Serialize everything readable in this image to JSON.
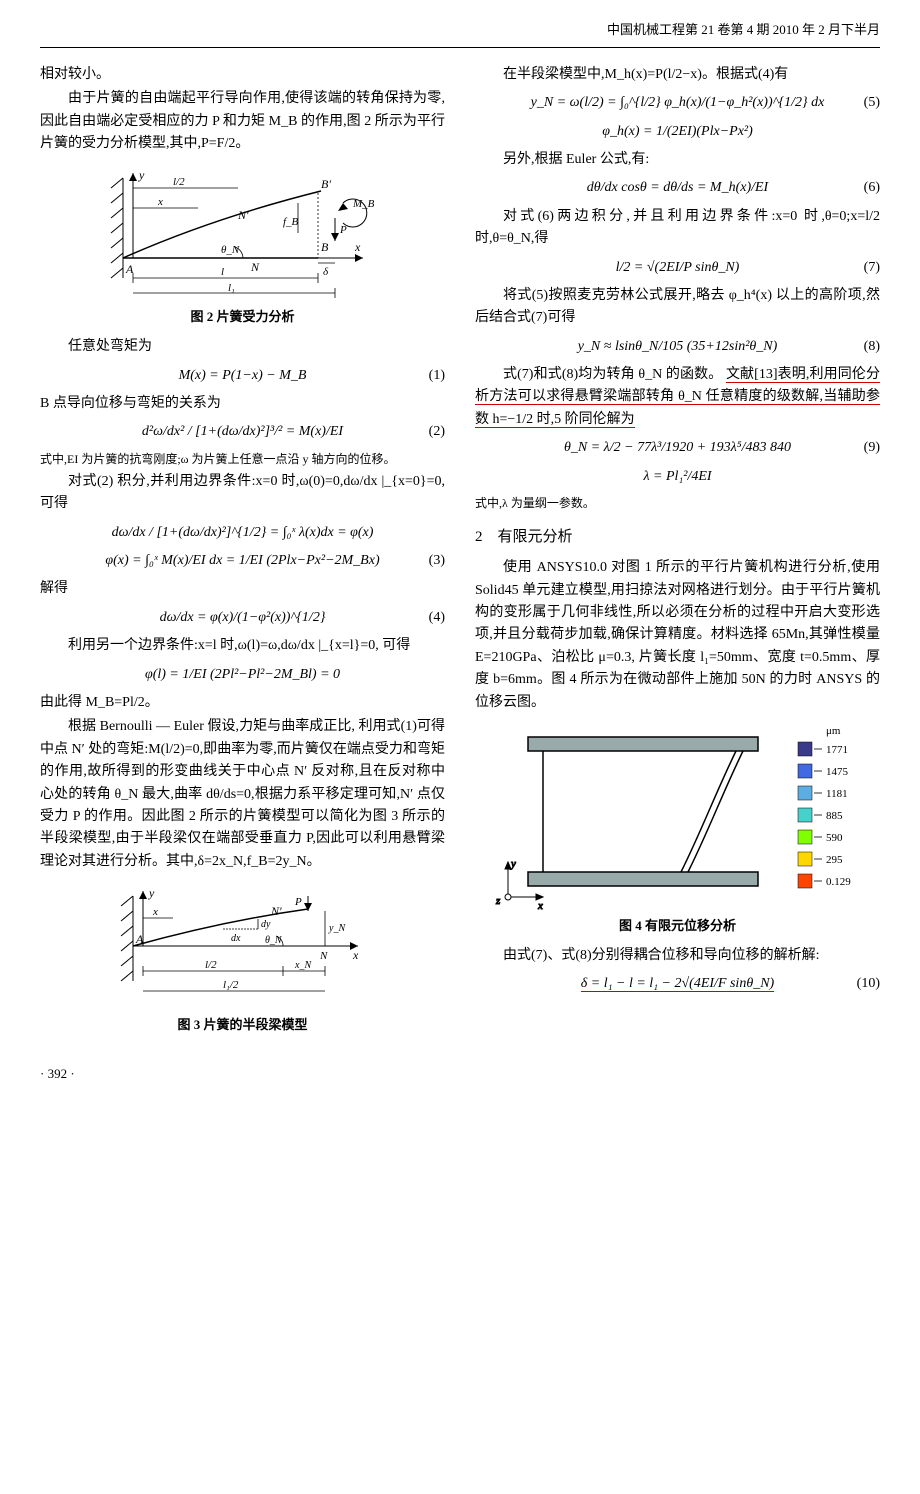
{
  "header": {
    "journal": "中国机械工程第 21 卷第 4 期 2010 年 2 月下半月"
  },
  "col1": {
    "p1": "相对较小。",
    "p2": "由于片簧的自由端起平行导向作用,使得该端的转角保持为零,因此自由端必定受相应的力 P 和力矩 M_B 的作用,图 2 所示为平行片簧的受力分析模型,其中,P=F/2。",
    "fig2_caption": "图 2  片簧受力分析",
    "p3": "任意处弯矩为",
    "eq1": "M(x) = P(1−x) − M_B",
    "eq1_num": "(1)",
    "p4": "B 点导向位移与弯矩的关系为",
    "eq2": "d²ω/dx² / [1+(dω/dx)²]³/² = M(x)/EI",
    "eq2_num": "(2)",
    "p5": "式中,EI 为片簧的抗弯刚度;ω 为片簧上任意一点沿 y 轴方向的位移。",
    "p6": "对式(2) 积分,并利用边界条件:x=0 时,ω(0)=0,dω/dx |_{x=0}=0,可得",
    "eq3a": "dω/dx / [1+(dω/dx)²]^{1/2} = ∫₀ˣ λ(x)dx = φ(x)",
    "eq3b": "φ(x) = ∫₀ˣ M(x)/EI dx = 1/EI (2Plx−Px²−2M_Bx)",
    "eq3_num": "(3)",
    "p7": "解得",
    "eq4": "dω/dx = φ(x)/(1−φ²(x))^{1/2}",
    "eq4_num": "(4)",
    "p8": "利用另一个边界条件:x=l 时,ω(l)=ω,dω/dx |_{x=l}=0, 可得",
    "eq_phi": "φ(l) = 1/EI (2Pl²−Pl²−2M_Bl) = 0",
    "p9": "由此得 M_B=Pl/2。",
    "p10": "根据 Bernoulli — Euler 假设,力矩与曲率成正比, 利用式(1)可得中点 N′ 处的弯矩:M(l/2)=0,即曲率为零,而片簧仅在端点受力和弯矩的作用,故所得到的形变曲线关于中心点 N′ 反对称,且在反对称中心处的转角 θ_N 最大,曲率 dθ/ds=0,根据力系平移定理可知,N′ 点仅受力 P 的作用。因此图 2 所示的片簧模型可以简化为图 3 所示的半段梁模型,由于半段梁仅在端部受垂直力 P,因此可以利用悬臂梁理论对其进行分析。其中,δ=2x_N,f_B=2y_N。",
    "fig3_caption": "图 3  片簧的半段梁模型"
  },
  "col2": {
    "p1": "在半段梁模型中,M_h(x)=P(l/2−x)。根据式(4)有",
    "eq5": "y_N = ω(l/2) = ∫₀^{l/2} φ_h(x)/(1−φ_h²(x))^{1/2} dx",
    "eq5_num": "(5)",
    "eq5b": "φ_h(x) = 1/(2EI)(Plx−Px²)",
    "p2": "另外,根据 Euler 公式,有:",
    "eq6": "dθ/dx cosθ = dθ/ds = M_h(x)/EI",
    "eq6_num": "(6)",
    "p3": "对式(6)两边积分,并且利用边界条件:x=0 时,θ=0;x=l/2 时,θ=θ_N,得",
    "eq7": "l/2 = √(2EI/P sinθ_N)",
    "eq7_num": "(7)",
    "p4a": "将式(5)按照麦克劳林公式展开,略去 φ_h⁴(x) 以上的高阶项,然后结合式(7)可得",
    "eq8": "y_N ≈ lsinθ_N/105 (35+12sin²θ_N)",
    "eq8_num": "(8)",
    "p5a": "式(7)和式(8)均为转角 θ_N 的函数。",
    "p5b": "文献[13]表明,利用同伦分析方法可以求得悬臂梁端部转角 θ_N 任意精度的级数解,当辅助参数 h=−1/2 时,5 阶同伦解为",
    "eq9": "θ_N = λ/2 − 77λ³/1920 + 193λ⁵/483 840",
    "eq9_num": "(9)",
    "eq9b": "λ = Pl₁²/4EI",
    "p6": "式中,λ 为量纲一参数。",
    "section2_num": "2",
    "section2_title": "有限元分析",
    "p7": "使用 ANSYS10.0 对图 1 所示的平行片簧机构进行分析,使用 Solid45 单元建立模型,用扫掠法对网格进行划分。由于平行片簧机构的变形属于几何非线性,所以必须在分析的过程中开启大变形选项,并且分载荷步加载,确保计算精度。材料选择 65Mn,其弹性模量 E=210GPa、泊松比 μ=0.3, 片簧长度 l₁=50mm、宽度 t=0.5mm、厚度 b=6mm。图 4 所示为在微动部件上施加 50N 的力时 ANSYS 的位移云图。",
    "fig4_caption": "图 4  有限元位移分析",
    "fig4_legend": {
      "unit": "μm",
      "values": [
        "1771",
        "1475",
        "1181",
        "885",
        "590",
        "295",
        "0.129"
      ],
      "colors": [
        "#3a3a8a",
        "#4169e1",
        "#5dade2",
        "#48d1cc",
        "#7fff00",
        "#ffd700",
        "#ff4500"
      ]
    },
    "p8": "由式(7)、式(8)分别得耦合位移和导向位移的解析解:",
    "eq10": "δ = l₁ − l = l₁ − 2√(4EI/F sinθ_N)",
    "eq10_num": "(10)"
  },
  "footer": {
    "page": "· 392 ·"
  },
  "fig2": {
    "labels": {
      "y": "y",
      "x": "x",
      "A": "A",
      "B": "B",
      "Bp": "B′",
      "N": "N",
      "Np": "N′",
      "l": "l",
      "l1": "l₁",
      "l2": "l/2",
      "MB": "M_B",
      "P": "P",
      "fB": "f_B",
      "delta": "δ",
      "thetaN": "θ_N"
    }
  },
  "fig3": {
    "labels": {
      "y": "y",
      "x": "x",
      "A": "A",
      "N": "N",
      "Np": "N′",
      "l2": "l/2",
      "l12": "l₁/2",
      "xN": "x_N",
      "yN": "y_N",
      "P": "P",
      "thetaN": "θ_N",
      "dx": "dx",
      "dy": "dy"
    }
  }
}
